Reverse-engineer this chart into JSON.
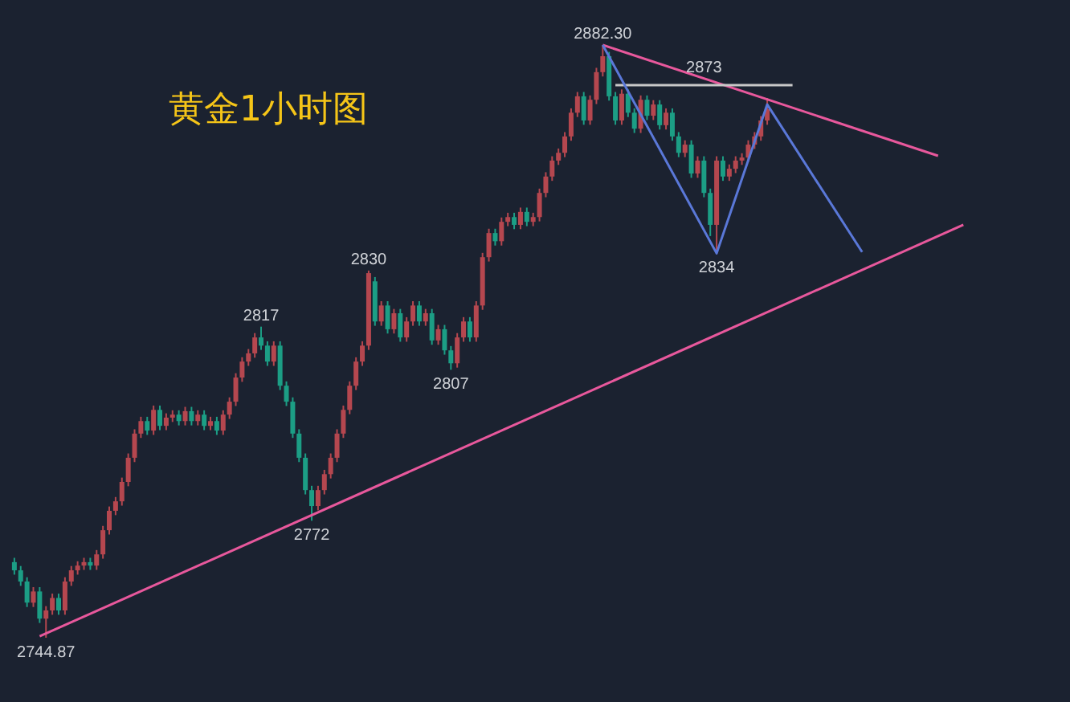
{
  "chart_data": {
    "type": "candlestick",
    "title": "黄金1小时图",
    "categories": [
      null,
      null,
      null,
      null,
      null,
      null,
      null,
      null,
      null,
      null,
      null,
      null,
      null,
      null,
      null,
      null,
      null,
      null,
      null,
      null,
      null,
      null,
      null,
      null,
      null,
      null,
      null,
      null,
      null,
      null,
      null,
      null,
      null,
      null,
      null,
      null,
      null,
      null,
      null,
      null,
      null,
      null,
      null,
      null,
      null,
      null,
      null,
      null,
      null,
      null,
      null,
      null,
      null,
      null,
      null,
      null,
      null,
      null,
      null,
      null,
      null,
      null,
      null,
      null,
      null,
      null,
      null,
      null,
      null,
      null,
      null,
      null,
      null,
      null,
      null,
      null,
      null,
      null,
      null,
      null,
      null,
      null,
      null,
      null,
      null,
      null,
      null,
      null,
      null,
      null,
      null,
      null,
      null,
      null,
      null,
      null,
      null,
      null,
      null,
      null,
      null,
      null,
      null,
      null,
      null,
      null,
      null,
      null,
      null,
      null,
      null,
      null,
      null,
      null,
      null,
      null,
      null,
      null,
      null,
      null,
      null,
      null,
      null,
      null,
      null,
      null,
      null,
      null,
      null,
      null,
      null,
      null,
      null,
      null,
      null,
      null,
      null,
      null,
      null,
      null,
      null,
      null,
      null,
      null,
      null,
      null,
      null,
      null,
      null,
      null,
      null,
      null
    ],
    "series": [
      {
        "ohlc": [
          [
            2762.4,
            2763.4,
            2759.5,
            2760.5
          ],
          [
            2760.5,
            2761.5,
            2756.9,
            2757.9
          ],
          [
            2757.9,
            2758.9,
            2752.0,
            2753.0
          ],
          [
            2753.0,
            2756.6,
            2752.0,
            2755.6
          ],
          [
            2755.6,
            2756.6,
            2748.3,
            2749.3
          ],
          [
            2749.3,
            2752.2,
            2744.87,
            2751.2
          ],
          [
            2751.2,
            2755.1,
            2750.2,
            2754.1
          ],
          [
            2754.1,
            2755.1,
            2750.2,
            2751.2
          ],
          [
            2751.2,
            2758.9,
            2750.2,
            2757.9
          ],
          [
            2757.9,
            2761.5,
            2756.9,
            2760.5
          ],
          [
            2760.5,
            2762.6,
            2759.5,
            2761.6
          ],
          [
            2761.6,
            2763.4,
            2760.6,
            2762.4
          ],
          [
            2762.4,
            2763.4,
            2760.6,
            2761.6
          ],
          [
            2761.6,
            2765.2,
            2760.6,
            2764.2
          ],
          [
            2764.2,
            2770.8,
            2763.2,
            2769.8
          ],
          [
            2769.8,
            2775.3,
            2768.8,
            2774.3
          ],
          [
            2774.3,
            2777.5,
            2773.3,
            2776.5
          ],
          [
            2776.5,
            2782.0,
            2775.5,
            2781.0
          ],
          [
            2781.0,
            2787.6,
            2780.0,
            2786.6
          ],
          [
            2786.6,
            2793.2,
            2785.6,
            2792.2
          ],
          [
            2792.2,
            2796.1,
            2791.2,
            2795.1
          ],
          [
            2795.1,
            2796.1,
            2791.9,
            2792.9
          ],
          [
            2792.9,
            2798.7,
            2791.9,
            2797.7
          ],
          [
            2797.7,
            2798.7,
            2793.0,
            2794.0
          ],
          [
            2794.0,
            2796.9,
            2793.0,
            2795.9
          ],
          [
            2795.9,
            2797.6,
            2794.9,
            2796.6
          ],
          [
            2796.6,
            2797.6,
            2794.1,
            2795.1
          ],
          [
            2795.1,
            2798.4,
            2794.1,
            2797.4
          ],
          [
            2797.4,
            2798.4,
            2794.1,
            2795.1
          ],
          [
            2795.1,
            2797.6,
            2794.1,
            2796.6
          ],
          [
            2796.6,
            2797.6,
            2793.0,
            2794.0
          ],
          [
            2794.0,
            2796.1,
            2793.0,
            2795.1
          ],
          [
            2795.1,
            2796.1,
            2791.9,
            2792.9
          ],
          [
            2792.9,
            2797.6,
            2791.9,
            2796.6
          ],
          [
            2796.6,
            2800.6,
            2795.6,
            2799.6
          ],
          [
            2799.6,
            2806.2,
            2798.6,
            2805.2
          ],
          [
            2805.2,
            2809.9,
            2804.2,
            2808.9
          ],
          [
            2808.9,
            2811.8,
            2807.9,
            2810.8
          ],
          [
            2810.8,
            2815.5,
            2809.8,
            2814.5
          ],
          [
            2814.5,
            2817,
            2811.6,
            2812.6
          ],
          [
            2812.6,
            2813.6,
            2807.9,
            2808.9
          ],
          [
            2808.9,
            2813.6,
            2807.9,
            2812.6
          ],
          [
            2812.6,
            2813.6,
            2802.3,
            2803.3
          ],
          [
            2803.3,
            2804.3,
            2798.6,
            2799.6
          ],
          [
            2799.6,
            2800.6,
            2791.2,
            2792.2
          ],
          [
            2792.2,
            2793.2,
            2785.6,
            2786.6
          ],
          [
            2786.6,
            2787.6,
            2778.1,
            2779.1
          ],
          [
            2779.1,
            2780.1,
            2772,
            2775.4
          ],
          [
            2775.4,
            2780.1,
            2774.4,
            2779.1
          ],
          [
            2779.1,
            2783.8,
            2778.1,
            2782.8
          ],
          [
            2782.8,
            2787.6,
            2781.8,
            2786.6
          ],
          [
            2786.6,
            2793.2,
            2785.6,
            2792.2
          ],
          [
            2792.2,
            2798.7,
            2791.2,
            2797.7
          ],
          [
            2797.7,
            2804.3,
            2796.7,
            2803.3
          ],
          [
            2803.3,
            2809.9,
            2802.3,
            2808.9
          ],
          [
            2808.9,
            2813.6,
            2807.9,
            2812.6
          ],
          [
            2812.6,
            2830,
            2811.6,
            2829.4
          ],
          [
            2827.5,
            2828.5,
            2817.2,
            2818.2
          ],
          [
            2818.2,
            2822.9,
            2817.2,
            2821.9
          ],
          [
            2821.9,
            2822.9,
            2815.4,
            2816.4
          ],
          [
            2816.4,
            2821.1,
            2815.4,
            2820.1
          ],
          [
            2820.1,
            2821.1,
            2813.5,
            2814.5
          ],
          [
            2814.5,
            2819.2,
            2813.5,
            2818.2
          ],
          [
            2818.2,
            2822.9,
            2817.2,
            2821.9
          ],
          [
            2821.9,
            2822.9,
            2817.2,
            2818.2
          ],
          [
            2818.2,
            2821.1,
            2817.2,
            2820.1
          ],
          [
            2820.1,
            2821.1,
            2812.8,
            2813.8
          ],
          [
            2813.8,
            2817.4,
            2812.8,
            2816.4
          ],
          [
            2816.4,
            2817.4,
            2810.5,
            2811.5
          ],
          [
            2811.5,
            2812.5,
            2807,
            2808.5
          ],
          [
            2808.5,
            2815.5,
            2807.5,
            2814.5
          ],
          [
            2814.5,
            2819.2,
            2813.5,
            2818.2
          ],
          [
            2818.2,
            2819.2,
            2813.5,
            2814.5
          ],
          [
            2814.5,
            2822.9,
            2813.5,
            2821.9
          ],
          [
            2821.9,
            2834.1,
            2820.9,
            2833.1
          ],
          [
            2833.1,
            2839.7,
            2832.1,
            2838.7
          ],
          [
            2838.7,
            2839.7,
            2835.8,
            2836.8
          ],
          [
            2836.8,
            2842.3,
            2835.8,
            2841.3
          ],
          [
            2841.3,
            2843.4,
            2840.3,
            2842.4
          ],
          [
            2842.4,
            2843.4,
            2839.6,
            2840.6
          ],
          [
            2840.6,
            2844.6,
            2839.6,
            2843.6
          ],
          [
            2843.6,
            2844.6,
            2840.3,
            2841.3
          ],
          [
            2841.3,
            2843.4,
            2840.3,
            2842.4
          ],
          [
            2842.4,
            2849.0,
            2841.4,
            2848.0
          ],
          [
            2848.0,
            2852.8,
            2847.0,
            2851.8
          ],
          [
            2851.8,
            2856.5,
            2850.8,
            2855.5
          ],
          [
            2855.5,
            2858.3,
            2854.5,
            2857.3
          ],
          [
            2857.3,
            2862.1,
            2856.3,
            2861.1
          ],
          [
            2861.1,
            2867.6,
            2860.1,
            2866.6
          ],
          [
            2866.6,
            2871.4,
            2865.6,
            2870.4
          ],
          [
            2870.4,
            2871.4,
            2863.8,
            2864.8
          ],
          [
            2864.8,
            2870.6,
            2863.8,
            2869.6
          ],
          [
            2869.6,
            2877.0,
            2868.6,
            2876.0
          ],
          [
            2876.0,
            2882.3,
            2875.0,
            2879.7
          ],
          [
            2879.7,
            2880.7,
            2869.4,
            2870.4
          ],
          [
            2870.4,
            2871.4,
            2863.8,
            2864.8
          ],
          [
            2864.8,
            2872.0,
            2863.8,
            2871.0
          ],
          [
            2871.0,
            2872.0,
            2865.6,
            2866.6
          ],
          [
            2866.6,
            2867.6,
            2861.9,
            2862.9
          ],
          [
            2862.9,
            2870.6,
            2861.9,
            2869.6
          ],
          [
            2869.6,
            2870.6,
            2864.9,
            2865.9
          ],
          [
            2865.9,
            2869.5,
            2864.9,
            2868.5
          ],
          [
            2868.5,
            2869.5,
            2862.7,
            2863.7
          ],
          [
            2863.7,
            2867.6,
            2862.7,
            2866.6
          ],
          [
            2866.6,
            2867.6,
            2860.1,
            2861.1
          ],
          [
            2861.1,
            2862.1,
            2856.3,
            2857.3
          ],
          [
            2857.3,
            2860.2,
            2856.3,
            2859.2
          ],
          [
            2859.2,
            2860.2,
            2851.5,
            2852.5
          ],
          [
            2852.5,
            2856.5,
            2851.5,
            2855.5
          ],
          [
            2855.5,
            2856.5,
            2847.0,
            2848.0
          ],
          [
            2848.0,
            2849.0,
            2838.0,
            2840.6
          ],
          [
            2840.6,
            2856.5,
            2834,
            2855.5
          ],
          [
            2855.5,
            2856.5,
            2850.8,
            2851.8
          ],
          [
            2851.8,
            2854.6,
            2850.8,
            2853.6
          ],
          [
            2853.6,
            2856.5,
            2852.6,
            2855.5
          ],
          [
            2855.5,
            2857.2,
            2854.5,
            2856.2
          ],
          [
            2856.2,
            2860.2,
            2855.2,
            2859.2
          ],
          [
            2859.2,
            2862.1,
            2858.2,
            2861.1
          ],
          [
            2861.1,
            2865.8,
            2860.1,
            2864.8
          ],
          [
            2864.8,
            2870.0,
            2863.8,
            2867.4
          ],
          null,
          null,
          null,
          null,
          null,
          null,
          null,
          null,
          null,
          null,
          null,
          null,
          null,
          null,
          null,
          null,
          null,
          null,
          null,
          null,
          null,
          null,
          null,
          null,
          null,
          null,
          null,
          null,
          null,
          null,
          null,
          null
        ],
        "colors": [
          "#1c9e85",
          "#1c9e85",
          "#1c9e85",
          "#b5474f",
          "#1c9e85",
          "#b5474f",
          "#b5474f",
          "#1c9e85",
          "#b5474f",
          "#b5474f",
          "#b5474f",
          "#b5474f",
          "#1c9e85",
          "#b5474f",
          "#b5474f",
          "#b5474f",
          "#b5474f",
          "#b5474f",
          "#b5474f",
          "#b5474f",
          "#b5474f",
          "#1c9e85",
          "#b5474f",
          "#1c9e85",
          "#b5474f",
          "#b5474f",
          "#1c9e85",
          "#b5474f",
          "#1c9e85",
          "#b5474f",
          "#1c9e85",
          "#b5474f",
          "#1c9e85",
          "#b5474f",
          "#b5474f",
          "#b5474f",
          "#b5474f",
          "#b5474f",
          "#b5474f",
          "#1c9e85",
          "#1c9e85",
          "#b5474f",
          "#1c9e85",
          "#1c9e85",
          "#1c9e85",
          "#1c9e85",
          "#1c9e85",
          "#1c9e85",
          "#b5474f",
          "#b5474f",
          "#b5474f",
          "#b5474f",
          "#b5474f",
          "#b5474f",
          "#b5474f",
          "#b5474f",
          "#b5474f",
          "#1c9e85",
          "#b5474f",
          "#1c9e85",
          "#b5474f",
          "#1c9e85",
          "#b5474f",
          "#b5474f",
          "#1c9e85",
          "#b5474f",
          "#1c9e85",
          "#b5474f",
          "#1c9e85",
          "#1c9e85",
          "#b5474f",
          "#b5474f",
          "#1c9e85",
          "#b5474f",
          "#b5474f",
          "#b5474f",
          "#1c9e85",
          "#b5474f",
          "#b5474f",
          "#1c9e85",
          "#b5474f",
          "#1c9e85",
          "#b5474f",
          "#b5474f",
          "#b5474f",
          "#b5474f",
          "#b5474f",
          "#b5474f",
          "#b5474f",
          "#b5474f",
          "#1c9e85",
          "#b5474f",
          "#b5474f",
          "#b5474f",
          "#1c9e85",
          "#1c9e85",
          "#b5474f",
          "#1c9e85",
          "#1c9e85",
          "#b5474f",
          "#1c9e85",
          "#b5474f",
          "#1c9e85",
          "#b5474f",
          "#1c9e85",
          "#1c9e85",
          "#b5474f",
          "#1c9e85",
          "#b5474f",
          "#1c9e85",
          "#1c9e85",
          "#b5474f",
          "#1c9e85",
          "#b5474f",
          "#b5474f",
          "#b5474f",
          "#b5474f",
          "#b5474f",
          "#b5474f",
          "#b5474f",
          null,
          null,
          null,
          null,
          null,
          null,
          null,
          null,
          null,
          null,
          null,
          null,
          null,
          null,
          null,
          null,
          null,
          null,
          null,
          null,
          null,
          null,
          null,
          null,
          null,
          null,
          null,
          null,
          null,
          null,
          null,
          null
        ]
      },
      {
        "type": "line",
        "color": "#e8589c",
        "values": [
          null,
          null,
          null,
          null,
          2745.2,
          null,
          null,
          null,
          null,
          null,
          null,
          null,
          null,
          null,
          null,
          null,
          null,
          null,
          null,
          null,
          null,
          null,
          null,
          null,
          null,
          null,
          null,
          null,
          null,
          null,
          null,
          null,
          null,
          null,
          null,
          null,
          null,
          null,
          null,
          null,
          null,
          null,
          null,
          null,
          null,
          null,
          null,
          null,
          null,
          null,
          null,
          null,
          null,
          null,
          null,
          null,
          null,
          null,
          null,
          null,
          null,
          null,
          null,
          null,
          null,
          null,
          null,
          null,
          null,
          null,
          null,
          null,
          null,
          null,
          null,
          null,
          null,
          null,
          null,
          null,
          null,
          null,
          null,
          null,
          null,
          null,
          null,
          null,
          null,
          null,
          null,
          null,
          null,
          null,
          null,
          null,
          null,
          null,
          null,
          null,
          null,
          null,
          null,
          null,
          null,
          null,
          null,
          null,
          null,
          null,
          null,
          null,
          null,
          null,
          null,
          null,
          null,
          null,
          null,
          null,
          null,
          null,
          null,
          null,
          null,
          null,
          null,
          null,
          null,
          null,
          null,
          null,
          null,
          null,
          null,
          null,
          null,
          null,
          null,
          null,
          null,
          null,
          null,
          null,
          null,
          null,
          null,
          null,
          null,
          null,
          2840.6,
          null
        ]
      },
      {
        "type": "line",
        "color": "#e8589c",
        "values": [
          null,
          null,
          null,
          null,
          null,
          null,
          null,
          null,
          null,
          null,
          null,
          null,
          null,
          null,
          null,
          null,
          null,
          null,
          null,
          null,
          null,
          null,
          null,
          null,
          null,
          null,
          null,
          null,
          null,
          null,
          null,
          null,
          null,
          null,
          null,
          null,
          null,
          null,
          null,
          null,
          null,
          null,
          null,
          null,
          null,
          null,
          null,
          null,
          null,
          null,
          null,
          null,
          null,
          null,
          null,
          null,
          null,
          null,
          null,
          null,
          null,
          null,
          null,
          null,
          null,
          null,
          null,
          null,
          null,
          null,
          null,
          null,
          null,
          null,
          null,
          null,
          null,
          null,
          null,
          null,
          null,
          null,
          null,
          null,
          null,
          null,
          null,
          null,
          null,
          null,
          null,
          null,
          null,
          2882.3,
          null,
          null,
          null,
          null,
          null,
          null,
          null,
          null,
          null,
          null,
          null,
          null,
          null,
          null,
          null,
          null,
          null,
          null,
          null,
          null,
          null,
          null,
          null,
          null,
          null,
          null,
          null,
          null,
          null,
          null,
          null,
          null,
          null,
          null,
          null,
          null,
          null,
          null,
          null,
          null,
          null,
          null,
          null,
          null,
          null,
          null,
          null,
          null,
          null,
          null,
          null,
          null,
          2856.6,
          null,
          null,
          null,
          null,
          null
        ]
      },
      {
        "type": "line",
        "color": "#c8c8c8",
        "values": [
          null,
          null,
          null,
          null,
          null,
          null,
          null,
          null,
          null,
          null,
          null,
          null,
          null,
          null,
          null,
          null,
          null,
          null,
          null,
          null,
          null,
          null,
          null,
          null,
          null,
          null,
          null,
          null,
          null,
          null,
          null,
          null,
          null,
          null,
          null,
          null,
          null,
          null,
          null,
          null,
          null,
          null,
          null,
          null,
          null,
          null,
          null,
          null,
          null,
          null,
          null,
          null,
          null,
          null,
          null,
          null,
          null,
          null,
          null,
          null,
          null,
          null,
          null,
          null,
          null,
          null,
          null,
          null,
          null,
          null,
          null,
          null,
          null,
          null,
          null,
          null,
          null,
          null,
          null,
          null,
          null,
          null,
          null,
          null,
          null,
          null,
          null,
          null,
          null,
          null,
          null,
          null,
          null,
          null,
          null,
          2873,
          null,
          null,
          null,
          null,
          null,
          null,
          null,
          null,
          null,
          null,
          null,
          null,
          null,
          null,
          null,
          null,
          null,
          null,
          null,
          null,
          null,
          null,
          null,
          null,
          null,
          null,
          null,
          2873,
          null,
          null,
          null,
          null,
          null,
          null,
          null,
          null,
          null,
          null,
          null,
          null,
          null,
          null,
          null,
          null,
          null,
          null,
          null,
          null,
          null,
          null,
          null,
          null,
          null,
          null,
          null,
          null
        ]
      },
      {
        "type": "line",
        "color": "#5a78d8",
        "values": [
          null,
          null,
          null,
          null,
          null,
          null,
          null,
          null,
          null,
          null,
          null,
          null,
          null,
          null,
          null,
          null,
          null,
          null,
          null,
          null,
          null,
          null,
          null,
          null,
          null,
          null,
          null,
          null,
          null,
          null,
          null,
          null,
          null,
          null,
          null,
          null,
          null,
          null,
          null,
          null,
          null,
          null,
          null,
          null,
          null,
          null,
          null,
          null,
          null,
          null,
          null,
          null,
          null,
          null,
          null,
          null,
          null,
          null,
          null,
          null,
          null,
          null,
          null,
          null,
          null,
          null,
          null,
          null,
          null,
          null,
          null,
          null,
          null,
          null,
          null,
          null,
          null,
          null,
          null,
          null,
          null,
          null,
          null,
          null,
          null,
          null,
          null,
          null,
          null,
          null,
          null,
          null,
          null,
          2882.3,
          null,
          null,
          null,
          null,
          null,
          null,
          null,
          null,
          null,
          null,
          null,
          null,
          null,
          null,
          null,
          null,
          null,
          2834,
          null,
          null,
          null,
          null,
          null,
          null,
          null,
          2868.5,
          null,
          null,
          null,
          null,
          null,
          null,
          null,
          null,
          null,
          null,
          null,
          null,
          null,
          null,
          2834.3,
          null,
          null,
          null,
          null,
          null,
          null,
          null,
          null,
          null,
          null,
          null,
          null,
          null,
          null,
          null,
          null,
          null
        ]
      }
    ],
    "annotations": [
      {
        "text": "2882.30",
        "y": 2882.3
      },
      {
        "text": "2873",
        "y": 2873
      },
      {
        "text": "2834",
        "y": 2834
      },
      {
        "text": "2830",
        "y": 2830
      },
      {
        "text": "2817",
        "y": 2817
      },
      {
        "text": "2807",
        "y": 2807
      },
      {
        "text": "2772",
        "y": 2772
      },
      {
        "text": "2744.87",
        "y": 2744.87
      }
    ]
  }
}
